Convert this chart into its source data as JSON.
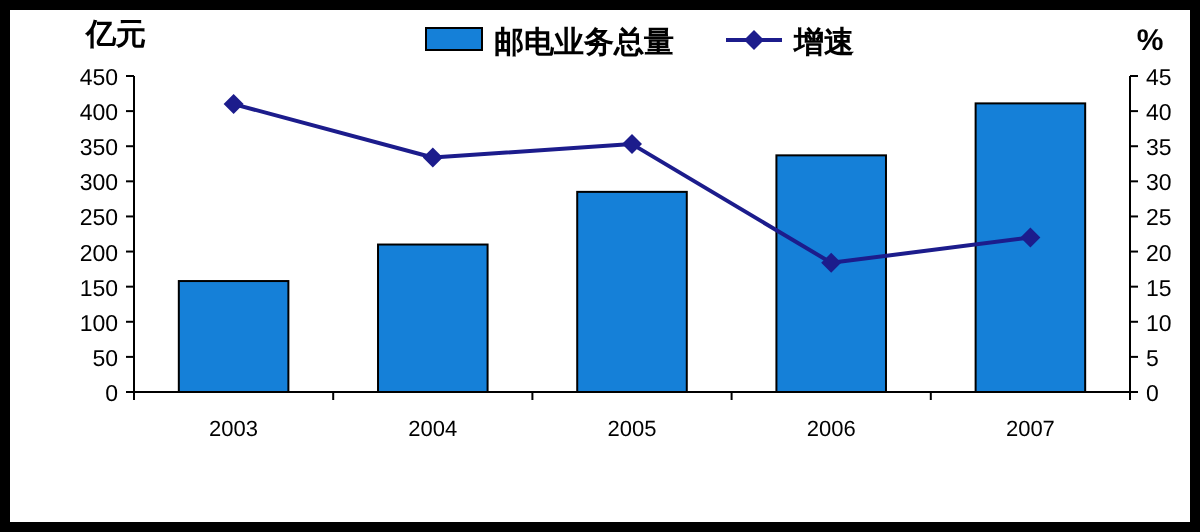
{
  "chart_data": {
    "type": "bar",
    "ylabel": "亿元",
    "y2label": "%",
    "categories": [
      "2003",
      "2004",
      "2005",
      "2006",
      "2007"
    ],
    "series": [
      {
        "name": "邮电业务总量",
        "color": "#1580d8",
        "values": [
          158,
          210,
          285,
          337,
          411
        ]
      },
      {
        "name": "增速",
        "type": "line",
        "axis": "y2",
        "color": "#1c1c8c",
        "marker": "diamond",
        "values": [
          41,
          33.4,
          35.3,
          18.4,
          22
        ]
      }
    ],
    "ylim": [
      0,
      450
    ],
    "yticks": [
      0,
      50,
      100,
      150,
      200,
      250,
      300,
      350,
      400,
      450
    ],
    "y2lim": [
      0,
      45
    ],
    "y2ticks": [
      0,
      5,
      10,
      15,
      20,
      25,
      30,
      35,
      40,
      45
    ],
    "legend": "top"
  }
}
